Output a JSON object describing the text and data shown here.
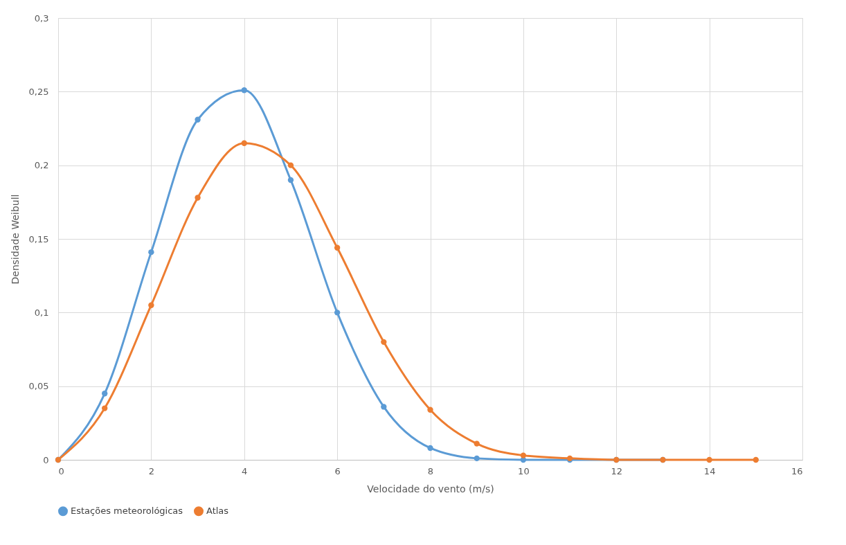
{
  "chart_data": {
    "type": "line",
    "xlabel": "Velocidade do vento (m/s)",
    "ylabel": "Densidade Weibull",
    "x": [
      0,
      1,
      2,
      3,
      4,
      5,
      6,
      7,
      8,
      9,
      10,
      11,
      12,
      13,
      14,
      15
    ],
    "series": [
      {
        "name": "Estações meteorológicas",
        "color": "#5b9bd5",
        "values": [
          0,
          0.045,
          0.141,
          0.231,
          0.251,
          0.19,
          0.1,
          0.036,
          0.008,
          0.001,
          0,
          0,
          0,
          0,
          null,
          null
        ]
      },
      {
        "name": "Atlas",
        "color": "#ed7d31",
        "values": [
          0,
          0.035,
          0.105,
          0.178,
          0.215,
          0.2,
          0.144,
          0.08,
          0.034,
          0.011,
          0.003,
          0.001,
          0,
          0,
          0,
          0
        ]
      }
    ],
    "xlim": [
      0,
      16
    ],
    "xticks": [
      0,
      2,
      4,
      6,
      8,
      10,
      12,
      14,
      16
    ],
    "ylim": [
      0,
      0.3
    ],
    "yticks": [
      0,
      {
        "value": 0.05,
        "label": "0,05"
      },
      {
        "value": 0.1,
        "label": "0,1"
      },
      {
        "value": 0.15,
        "label": "0,15"
      },
      {
        "value": 0.2,
        "label": "0,2"
      },
      {
        "value": 0.25,
        "label": "0,25"
      },
      {
        "value": 0.3,
        "label": "0,3"
      }
    ],
    "grid": true,
    "legend": "bottom",
    "marker": "circle",
    "line_style": "solid"
  }
}
